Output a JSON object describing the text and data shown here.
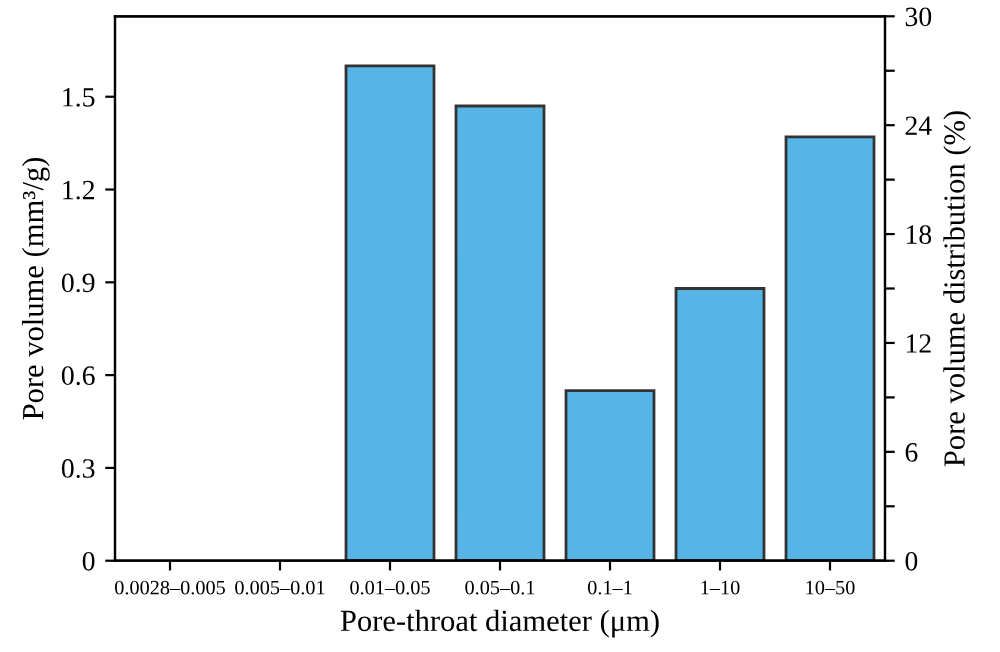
{
  "chart_data": {
    "type": "bar",
    "categories": [
      "0.0028–0.005",
      "0.005–0.01",
      "0.01–0.05",
      "0.05–0.1",
      "0.1–1",
      "1–10",
      "10–50"
    ],
    "values": [
      0,
      0,
      1.6,
      1.47,
      0.55,
      0.88,
      1.37
    ],
    "color": "#56b4e6",
    "xlabel": "Pore-throat diameter (μm)",
    "ylabel": "Pore volume (mm³/g)",
    "y2label": "Pore volume distribution (%)",
    "ylim": [
      0,
      1.76
    ],
    "yticks": [
      0,
      0.3,
      0.6,
      0.9,
      1.2,
      1.5
    ],
    "y2lim": [
      0,
      30
    ],
    "y2ticks": [
      0,
      {
        "value": 3,
        "label": null
      },
      6,
      {
        "value": 9,
        "label": null
      },
      12,
      {
        "value": 15,
        "label": null
      },
      18,
      {
        "value": 21,
        "label": null
      },
      24,
      {
        "value": 27,
        "label": null
      },
      30
    ],
    "grid": false,
    "legend": false
  }
}
